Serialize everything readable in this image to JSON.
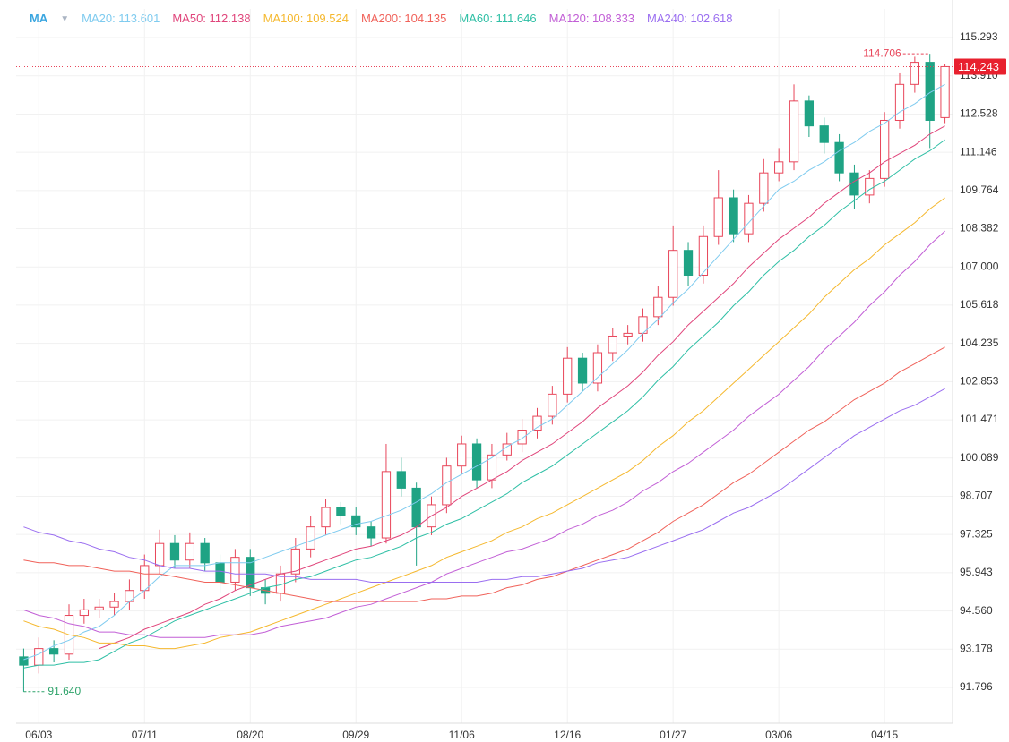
{
  "chart_data": {
    "type": "candlestick",
    "indicator": "MA",
    "indicator_toggle": "▼",
    "up_color": "#e8465a",
    "down_color": "#1fa384",
    "grid": true,
    "ylim": [
      90.501,
      116.329
    ],
    "yticks": [
      115.293,
      {
        "value": 113.91,
        "label": "113.910"
      },
      112.528,
      111.146,
      109.764,
      108.382,
      {
        "value": 107.0,
        "label": "107.000"
      },
      105.618,
      104.235,
      102.853,
      101.471,
      100.089,
      98.707,
      97.325,
      95.943,
      {
        "value": 94.56,
        "label": "94.560"
      },
      93.178,
      91.796
    ],
    "categories": [
      null,
      "06/03",
      null,
      null,
      null,
      null,
      null,
      null,
      "07/11",
      null,
      null,
      null,
      null,
      null,
      null,
      "08/20",
      null,
      null,
      null,
      null,
      null,
      null,
      "09/29",
      null,
      null,
      null,
      null,
      null,
      null,
      "11/06",
      null,
      null,
      null,
      null,
      null,
      null,
      "12/16",
      null,
      null,
      null,
      null,
      null,
      null,
      "01/27",
      null,
      null,
      null,
      null,
      null,
      null,
      "03/06",
      null,
      null,
      null,
      null,
      null,
      null,
      "04/15",
      null,
      null,
      null,
      null
    ],
    "candles": {
      "open": [
        92.9,
        92.6,
        93.2,
        93.0,
        94.4,
        94.6,
        94.7,
        94.9,
        95.3,
        96.2,
        97.0,
        96.4,
        97.0,
        96.3,
        95.6,
        96.5,
        95.4,
        95.2,
        95.9,
        96.8,
        97.6,
        98.3,
        98.0,
        97.6,
        97.2,
        99.6,
        99.0,
        97.6,
        98.4,
        99.8,
        100.6,
        99.3,
        100.2,
        100.6,
        101.1,
        101.6,
        102.4,
        103.7,
        102.8,
        103.9,
        104.5,
        104.6,
        105.2,
        105.9,
        107.6,
        106.7,
        108.1,
        109.5,
        108.2,
        109.3,
        110.4,
        110.8,
        113.0,
        112.1,
        111.5,
        110.4,
        109.6,
        110.2,
        112.3,
        113.6,
        114.4,
        112.4
      ],
      "high": [
        93.2,
        93.6,
        93.5,
        94.8,
        95.0,
        95.0,
        95.2,
        95.7,
        96.6,
        97.5,
        97.3,
        97.4,
        97.2,
        96.6,
        96.8,
        96.8,
        95.7,
        96.2,
        97.2,
        98.0,
        98.6,
        98.5,
        98.3,
        97.8,
        100.6,
        100.1,
        99.2,
        98.7,
        100.1,
        100.9,
        100.8,
        100.6,
        101.0,
        101.5,
        101.9,
        102.7,
        104.1,
        103.9,
        104.2,
        104.8,
        104.9,
        105.5,
        106.3,
        108.5,
        107.9,
        108.5,
        110.5,
        109.8,
        109.6,
        110.9,
        111.3,
        113.6,
        113.2,
        112.4,
        111.8,
        110.7,
        110.5,
        112.6,
        114.0,
        114.6,
        114.706,
        114.35
      ],
      "low": [
        91.64,
        92.3,
        92.7,
        92.8,
        94.1,
        94.3,
        94.4,
        94.6,
        95.0,
        95.9,
        96.1,
        96.1,
        96.0,
        95.2,
        95.3,
        95.1,
        94.8,
        94.9,
        95.6,
        96.5,
        97.3,
        97.7,
        97.3,
        96.9,
        97.0,
        98.7,
        96.2,
        97.3,
        98.1,
        99.5,
        99.0,
        99.0,
        100.0,
        100.3,
        100.8,
        101.3,
        102.1,
        102.5,
        102.5,
        103.6,
        104.2,
        104.3,
        104.9,
        105.6,
        106.3,
        106.4,
        107.8,
        107.9,
        107.9,
        109.0,
        110.1,
        110.5,
        111.7,
        111.1,
        110.1,
        109.1,
        109.3,
        109.9,
        112.0,
        113.3,
        111.3,
        112.2
      ],
      "close": [
        92.6,
        93.2,
        93.0,
        94.4,
        94.6,
        94.7,
        94.9,
        95.3,
        96.2,
        97.0,
        96.4,
        97.0,
        96.3,
        95.6,
        96.5,
        95.4,
        95.2,
        95.9,
        96.8,
        97.6,
        98.3,
        98.0,
        97.6,
        97.2,
        99.6,
        99.0,
        97.6,
        98.4,
        99.8,
        100.6,
        99.3,
        100.2,
        100.6,
        101.1,
        101.6,
        102.4,
        103.7,
        102.8,
        103.9,
        104.5,
        104.6,
        105.2,
        105.9,
        107.6,
        106.7,
        108.1,
        109.5,
        108.2,
        109.3,
        110.4,
        110.8,
        113.0,
        112.1,
        111.5,
        110.4,
        109.6,
        110.2,
        112.3,
        113.6,
        114.4,
        112.3,
        114.243
      ]
    },
    "series": [
      {
        "name": "MA20: 113.601",
        "color": "#7fcbef",
        "values": [
          92.8,
          93.0,
          93.3,
          93.5,
          93.8,
          94.0,
          94.4,
          94.9,
          95.3,
          95.8,
          96.2,
          96.2,
          96.2,
          96.3,
          96.3,
          96.3,
          96.5,
          96.7,
          96.9,
          97.1,
          97.3,
          97.5,
          97.7,
          97.8,
          98.0,
          98.2,
          98.5,
          98.8,
          99.2,
          99.5,
          99.8,
          100.1,
          100.5,
          100.8,
          101.2,
          101.5,
          102.0,
          102.5,
          103.0,
          103.5,
          104.0,
          104.6,
          105.1,
          105.7,
          106.2,
          106.8,
          107.4,
          108.0,
          108.6,
          109.2,
          109.8,
          110.1,
          110.5,
          110.8,
          111.2,
          111.5,
          111.9,
          112.2,
          112.6,
          112.9,
          113.3,
          113.6
        ]
      },
      {
        "name": "MA50: 112.138",
        "color": "#e0457b",
        "values": [
          null,
          null,
          null,
          null,
          null,
          93.2,
          93.4,
          93.6,
          93.9,
          94.1,
          94.3,
          94.5,
          94.8,
          95.0,
          95.3,
          95.5,
          95.7,
          95.9,
          96.0,
          96.2,
          96.4,
          96.6,
          96.8,
          96.9,
          97.1,
          97.3,
          97.6,
          98.0,
          98.3,
          98.7,
          99.0,
          99.3,
          99.6,
          100.0,
          100.3,
          100.6,
          101.0,
          101.4,
          101.9,
          102.3,
          102.7,
          103.2,
          103.8,
          104.3,
          104.9,
          105.4,
          105.9,
          106.4,
          107.0,
          107.5,
          108.0,
          108.4,
          108.8,
          109.3,
          109.7,
          110.1,
          110.4,
          110.8,
          111.1,
          111.4,
          111.8,
          112.1
        ]
      },
      {
        "name": "MA100: 109.524",
        "color": "#f5b82e",
        "values": [
          94.2,
          94.0,
          93.9,
          93.7,
          93.6,
          93.4,
          93.4,
          93.3,
          93.3,
          93.2,
          93.2,
          93.3,
          93.4,
          93.6,
          93.7,
          93.8,
          94.0,
          94.2,
          94.4,
          94.6,
          94.8,
          95.0,
          95.2,
          95.4,
          95.6,
          95.8,
          96.0,
          96.2,
          96.5,
          96.7,
          96.9,
          97.1,
          97.4,
          97.6,
          97.9,
          98.1,
          98.4,
          98.7,
          99.0,
          99.3,
          99.6,
          100.0,
          100.5,
          100.9,
          101.4,
          101.8,
          102.3,
          102.8,
          103.3,
          103.8,
          104.3,
          104.8,
          105.3,
          105.9,
          106.4,
          106.9,
          107.3,
          107.8,
          108.2,
          108.6,
          109.1,
          109.5
        ]
      },
      {
        "name": "MA200: 104.135",
        "color": "#f0625a",
        "values": [
          96.4,
          96.3,
          96.3,
          96.2,
          96.2,
          96.1,
          96.0,
          96.0,
          95.9,
          95.9,
          95.8,
          95.7,
          95.6,
          95.6,
          95.5,
          95.4,
          95.3,
          95.2,
          95.1,
          95.0,
          94.9,
          94.9,
          94.9,
          94.9,
          94.9,
          94.9,
          94.9,
          95.0,
          95.0,
          95.1,
          95.1,
          95.2,
          95.4,
          95.5,
          95.7,
          95.8,
          96.0,
          96.2,
          96.4,
          96.6,
          96.8,
          97.1,
          97.4,
          97.8,
          98.1,
          98.4,
          98.8,
          99.2,
          99.5,
          99.9,
          100.3,
          100.7,
          101.1,
          101.4,
          101.8,
          102.2,
          102.5,
          102.8,
          103.2,
          103.5,
          103.8,
          104.1
        ]
      },
      {
        "name": "MA60: 111.646",
        "color": "#2ebfa5",
        "values": [
          92.5,
          92.6,
          92.6,
          92.7,
          92.7,
          92.8,
          93.1,
          93.4,
          93.6,
          93.9,
          94.2,
          94.4,
          94.6,
          94.8,
          95.0,
          95.2,
          95.4,
          95.5,
          95.7,
          95.8,
          96.0,
          96.2,
          96.4,
          96.5,
          96.7,
          96.9,
          97.2,
          97.4,
          97.7,
          97.9,
          98.2,
          98.5,
          98.8,
          99.2,
          99.5,
          99.8,
          100.2,
          100.6,
          101.0,
          101.4,
          101.8,
          102.3,
          102.9,
          103.4,
          104.0,
          104.5,
          105.0,
          105.6,
          106.1,
          106.7,
          107.2,
          107.6,
          108.1,
          108.5,
          109.0,
          109.4,
          109.8,
          110.1,
          110.5,
          110.9,
          111.2,
          111.6
        ]
      },
      {
        "name": "MA120: 108.333",
        "color": "#c25fd6",
        "values": [
          94.6,
          94.4,
          94.3,
          94.1,
          94.0,
          93.8,
          93.8,
          93.7,
          93.7,
          93.6,
          93.6,
          93.6,
          93.6,
          93.7,
          93.7,
          93.7,
          93.8,
          94.0,
          94.1,
          94.2,
          94.3,
          94.5,
          94.7,
          94.8,
          95.0,
          95.2,
          95.4,
          95.6,
          95.9,
          96.1,
          96.3,
          96.5,
          96.7,
          96.8,
          97.0,
          97.2,
          97.5,
          97.7,
          98.0,
          98.2,
          98.5,
          98.9,
          99.2,
          99.6,
          99.9,
          100.3,
          100.7,
          101.1,
          101.6,
          102.0,
          102.4,
          102.9,
          103.4,
          104.0,
          104.5,
          105.0,
          105.6,
          106.1,
          106.7,
          107.2,
          107.8,
          108.3
        ]
      },
      {
        "name": "MA240: 102.618",
        "color": "#9a6ef0",
        "values": [
          97.6,
          97.4,
          97.3,
          97.1,
          97.0,
          96.8,
          96.7,
          96.5,
          96.4,
          96.2,
          96.1,
          96.1,
          96.0,
          96.0,
          95.9,
          95.9,
          95.9,
          95.8,
          95.8,
          95.7,
          95.7,
          95.7,
          95.7,
          95.6,
          95.6,
          95.6,
          95.6,
          95.6,
          95.6,
          95.6,
          95.6,
          95.7,
          95.7,
          95.8,
          95.8,
          95.9,
          96.0,
          96.1,
          96.3,
          96.4,
          96.5,
          96.7,
          96.9,
          97.1,
          97.3,
          97.5,
          97.8,
          98.1,
          98.3,
          98.6,
          98.9,
          99.3,
          99.7,
          100.1,
          100.5,
          100.9,
          101.2,
          101.5,
          101.8,
          102.0,
          102.3,
          102.6
        ]
      }
    ],
    "high_marker": {
      "value": 114.706,
      "label": "114.706"
    },
    "low_marker": {
      "value": 91.64,
      "label": "91.640"
    },
    "last_price": 114.243
  }
}
